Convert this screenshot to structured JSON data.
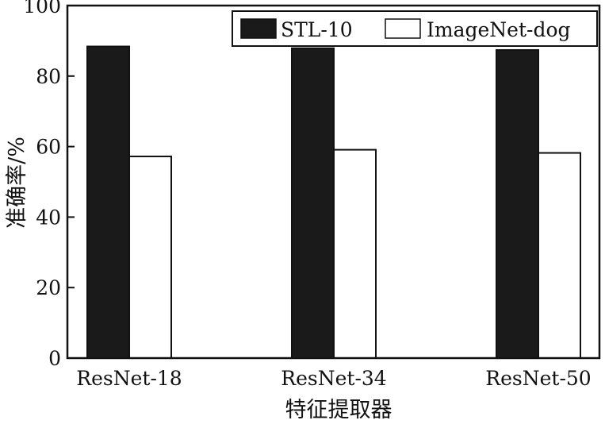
{
  "chart_data": {
    "type": "bar",
    "categories": [
      "ResNet-18",
      "ResNet-34",
      "ResNet-50"
    ],
    "series": [
      {
        "name": "STL-10",
        "values": [
          88.4,
          87.9,
          87.4
        ],
        "color": "#1a1a1a"
      },
      {
        "name": "ImageNet-dog",
        "values": [
          57.2,
          59.1,
          58.2
        ],
        "color": "#ffffff"
      }
    ],
    "xlabel": "特征提取器",
    "ylabel": "准确率/%",
    "ylim": [
      0,
      100
    ],
    "yticks": [
      0,
      20,
      40,
      60,
      80,
      100
    ],
    "grid": false,
    "legend_position": "top-right"
  }
}
